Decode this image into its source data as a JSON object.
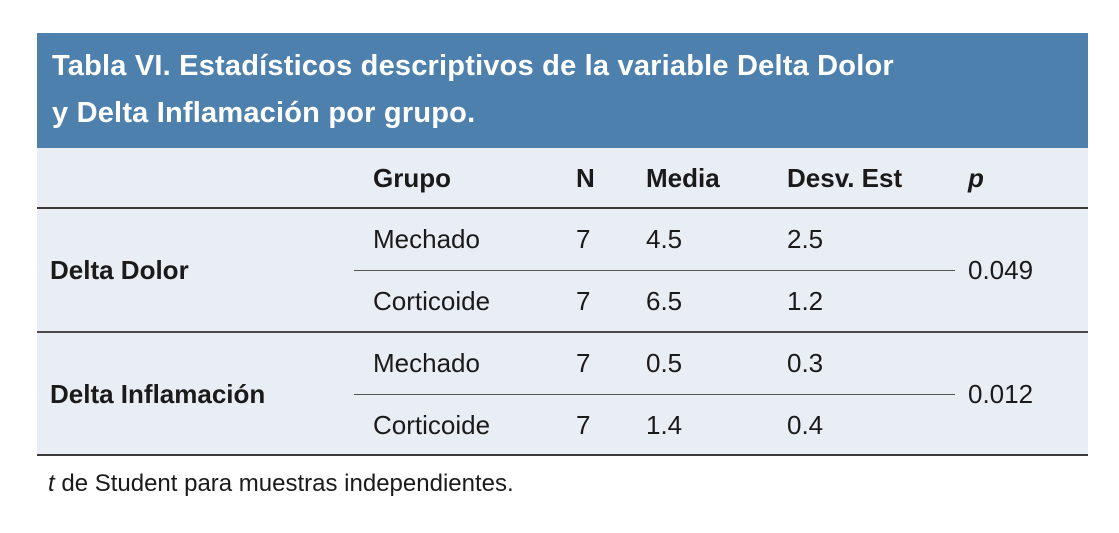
{
  "colors": {
    "band_blue": "#4e80ad",
    "table_background": "#e9edf4",
    "rule_dark": "#3a3a3a",
    "rule_thin": "#555555",
    "title_text": "#ffffff",
    "body_text": "#1a1a1a"
  },
  "title": {
    "line1": "Tabla VI. Estadísticos descriptivos de la variable Delta Dolor",
    "line2": "y Delta Inflamación por grupo."
  },
  "table": {
    "columns": [
      "",
      "Grupo",
      "N",
      "Media",
      "Desv. Est",
      "p"
    ],
    "groups": [
      {
        "label": "Delta Dolor",
        "p": "0.049",
        "rows": [
          {
            "grupo": "Mechado",
            "n": "7",
            "media": "4.5",
            "desv": "2.5"
          },
          {
            "grupo": "Corticoide",
            "n": "7",
            "media": "6.5",
            "desv": "1.2"
          }
        ]
      },
      {
        "label": "Delta Inflamación",
        "p": "0.012",
        "rows": [
          {
            "grupo": "Mechado",
            "n": "7",
            "media": "0.5",
            "desv": "0.3"
          },
          {
            "grupo": "Corticoide",
            "n": "7",
            "media": "1.4",
            "desv": "0.4"
          }
        ]
      }
    ]
  },
  "footnote": {
    "italic": "t",
    "text": " de Student para muestras independientes."
  }
}
